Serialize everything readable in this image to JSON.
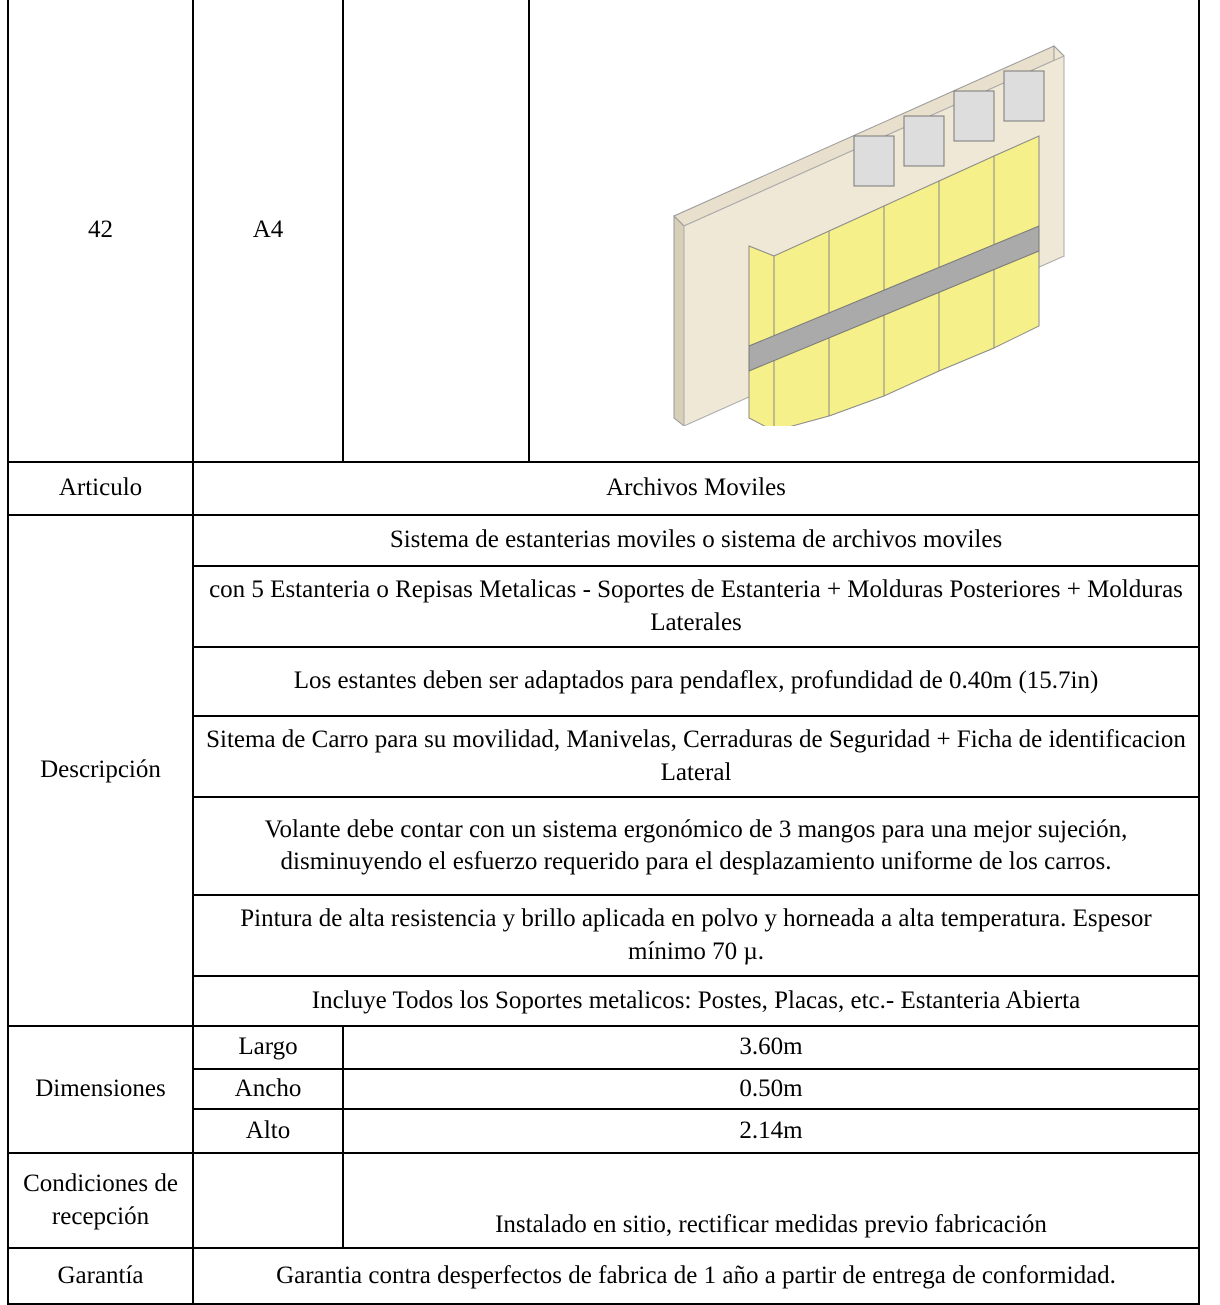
{
  "top_row": {
    "number": "42",
    "format": "A4"
  },
  "articulo": {
    "label": "Articulo",
    "value": "Archivos Moviles"
  },
  "descripcion": {
    "label": "Descripción",
    "items": [
      "Sistema de estanterias moviles o sistema de archivos moviles",
      "con 5 Estanteria o Repisas Metalicas - Soportes de Estanteria + Molduras Posteriores + Molduras Laterales",
      "Los estantes deben ser adaptados para pendaflex, profundidad de 0.40m (15.7in)",
      "Sitema de Carro para su movilidad, Manivelas, Cerraduras de Seguridad + Ficha de identificacion Lateral",
      "Volante debe contar con un sistema ergonómico de 3 mangos para una mejor sujeción, disminuyendo el esfuerzo requerido para el desplazamiento uniforme de los carros.",
      "Pintura de alta resistencia y brillo aplicada en polvo y horneada a alta temperatura. Espesor mínimo 70 µ.",
      "Incluye Todos los Soportes metalicos: Postes, Placas, etc.- Estanteria Abierta"
    ]
  },
  "dimensiones": {
    "label": "Dimensiones",
    "rows": [
      [
        "Largo",
        "3.60m"
      ],
      [
        "Ancho",
        "0.50m"
      ],
      [
        "Alto",
        "2.14m"
      ]
    ]
  },
  "condiciones": {
    "label": "Condiciones de recepción",
    "value": "Instalado en sitio, rectificar medidas previo fabricación"
  },
  "garantia": {
    "label": "Garantía",
    "value": "Garantia contra desperfectos de fabrica de 1 año a partir de entrega de conformidad."
  }
}
